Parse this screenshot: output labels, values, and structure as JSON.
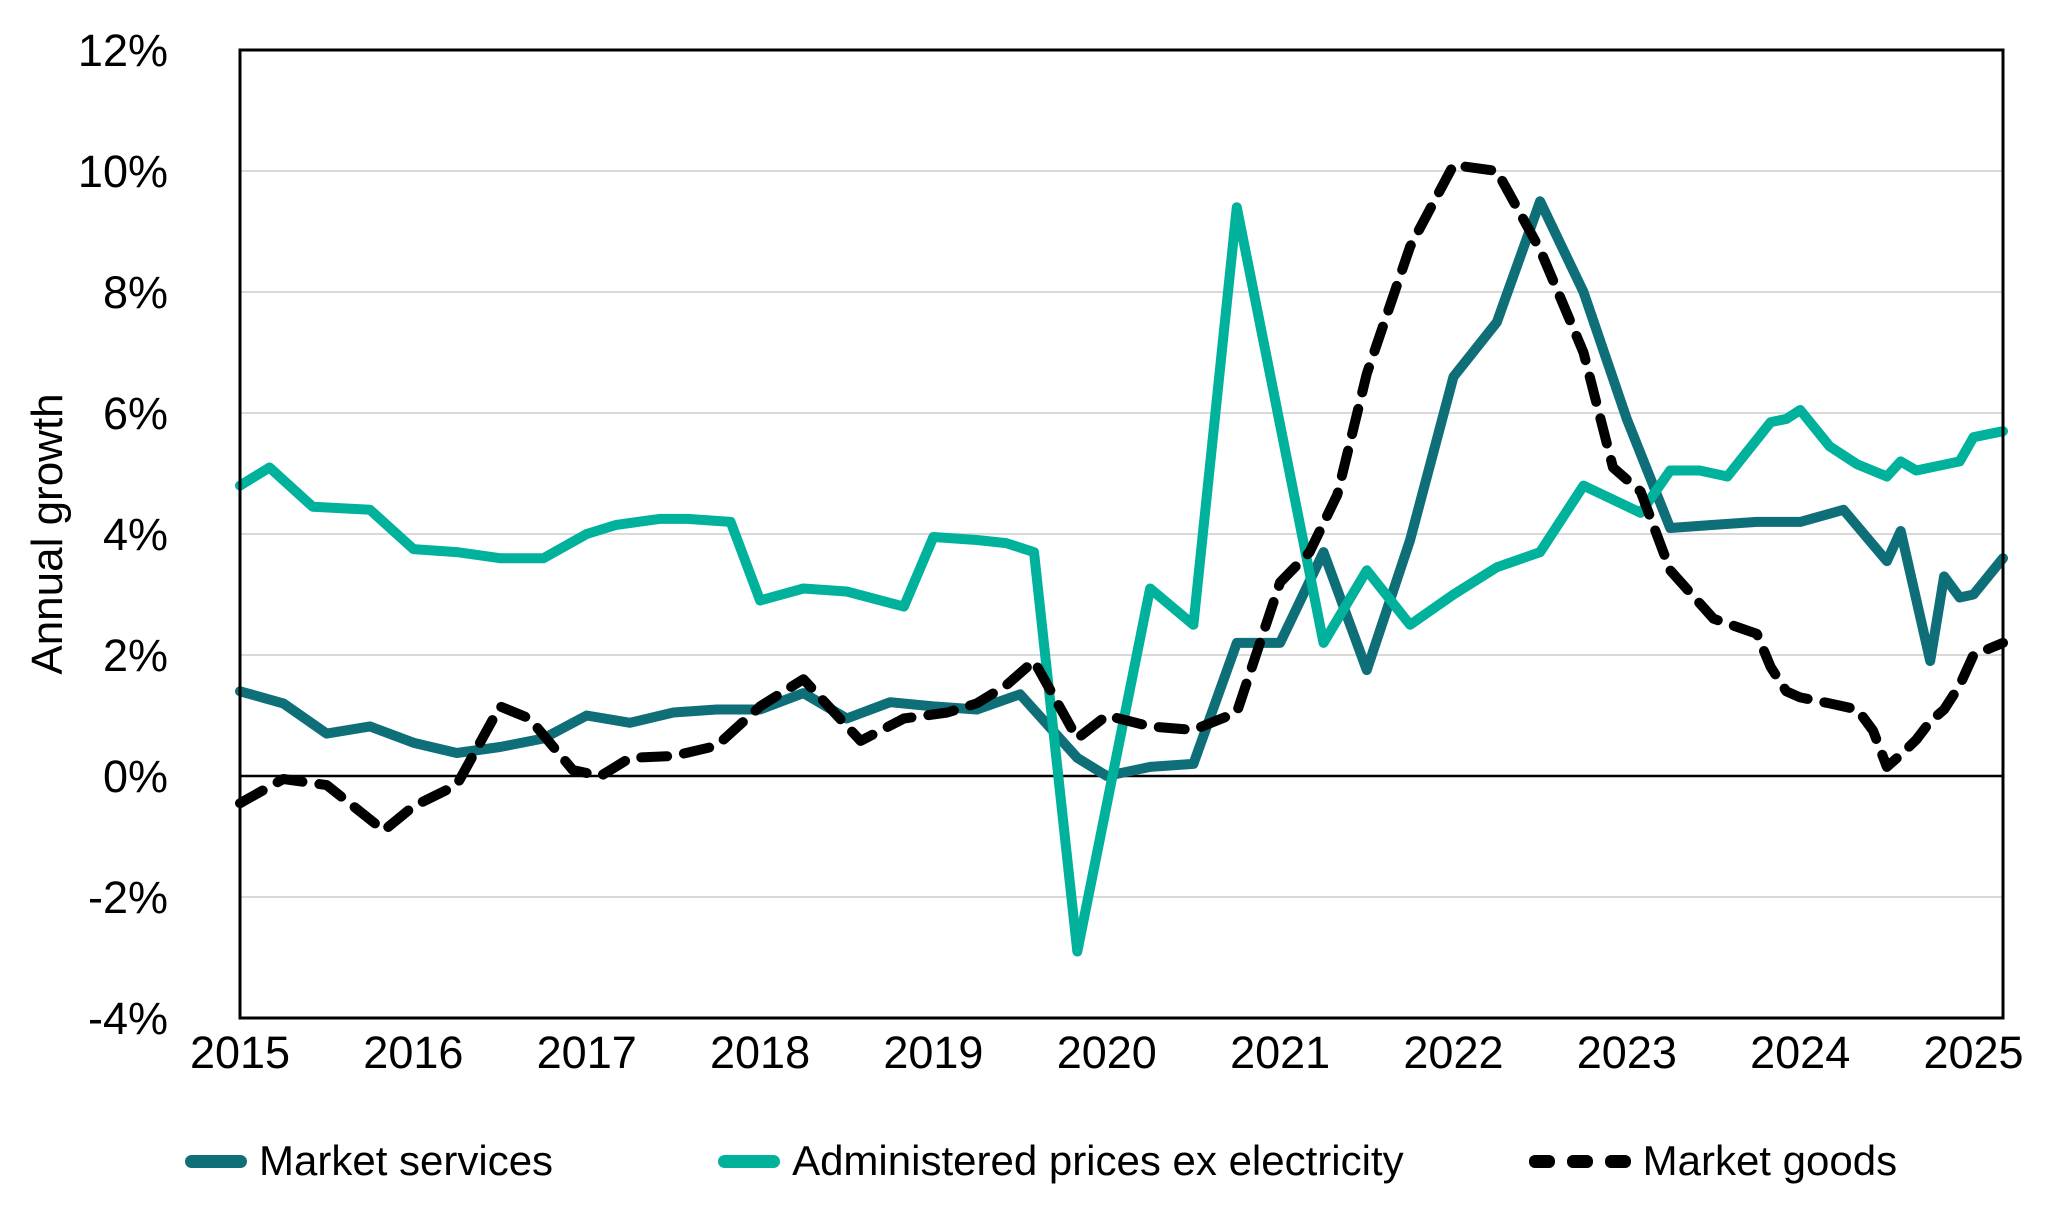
{
  "chart_data": {
    "type": "line",
    "title": "",
    "xlabel": "",
    "ylabel": "Annual growth",
    "ylim": [
      -4,
      12
    ],
    "ytick_step": 2,
    "ytick_suffix": "%",
    "xlim": [
      2015,
      2025.17
    ],
    "xticks": [
      2015,
      2016,
      2017,
      2018,
      2019,
      2020,
      2021,
      2022,
      2023,
      2024,
      2025
    ],
    "grid": "horizontal",
    "legend_position": "bottom",
    "background_color": "#ffffff",
    "gridline_color": "#d9d9d9",
    "axis_color": "#000000",
    "series": [
      {
        "name": "Market services",
        "color": "#0e6f78",
        "dash": "solid",
        "points": [
          [
            2015.0,
            1.4
          ],
          [
            2015.25,
            1.2
          ],
          [
            2015.5,
            0.7
          ],
          [
            2015.75,
            0.82
          ],
          [
            2016.0,
            0.55
          ],
          [
            2016.25,
            0.38
          ],
          [
            2016.5,
            0.48
          ],
          [
            2016.75,
            0.62
          ],
          [
            2017.0,
            1.0
          ],
          [
            2017.25,
            0.88
          ],
          [
            2017.5,
            1.05
          ],
          [
            2017.75,
            1.1
          ],
          [
            2018.0,
            1.1
          ],
          [
            2018.25,
            1.37
          ],
          [
            2018.5,
            0.95
          ],
          [
            2018.75,
            1.22
          ],
          [
            2019.0,
            1.15
          ],
          [
            2019.25,
            1.1
          ],
          [
            2019.5,
            1.35
          ],
          [
            2019.83,
            0.3
          ],
          [
            2020.0,
            0.0
          ],
          [
            2020.25,
            0.15
          ],
          [
            2020.5,
            0.2
          ],
          [
            2020.75,
            2.2
          ],
          [
            2021.0,
            2.2
          ],
          [
            2021.25,
            3.7
          ],
          [
            2021.5,
            1.75
          ],
          [
            2021.75,
            3.9
          ],
          [
            2022.0,
            6.6
          ],
          [
            2022.25,
            7.5
          ],
          [
            2022.5,
            9.5
          ],
          [
            2022.75,
            8.0
          ],
          [
            2023.0,
            5.9
          ],
          [
            2023.25,
            4.1
          ],
          [
            2023.5,
            4.15
          ],
          [
            2023.75,
            4.2
          ],
          [
            2024.0,
            4.2
          ],
          [
            2024.25,
            4.4
          ],
          [
            2024.5,
            3.55
          ],
          [
            2024.58,
            4.05
          ],
          [
            2024.75,
            1.9
          ],
          [
            2024.83,
            3.3
          ],
          [
            2024.92,
            2.95
          ],
          [
            2025.0,
            3.0
          ],
          [
            2025.17,
            3.6
          ]
        ]
      },
      {
        "name": "Administered prices ex electricity",
        "color": "#00b29b",
        "dash": "solid",
        "points": [
          [
            2015.0,
            4.8
          ],
          [
            2015.17,
            5.1
          ],
          [
            2015.42,
            4.45
          ],
          [
            2015.75,
            4.4
          ],
          [
            2016.0,
            3.75
          ],
          [
            2016.25,
            3.7
          ],
          [
            2016.5,
            3.6
          ],
          [
            2016.75,
            3.6
          ],
          [
            2017.0,
            4.0
          ],
          [
            2017.17,
            4.15
          ],
          [
            2017.42,
            4.25
          ],
          [
            2017.58,
            4.25
          ],
          [
            2017.83,
            4.2
          ],
          [
            2018.0,
            2.9
          ],
          [
            2018.25,
            3.1
          ],
          [
            2018.5,
            3.05
          ],
          [
            2018.83,
            2.8
          ],
          [
            2019.0,
            3.95
          ],
          [
            2019.25,
            3.9
          ],
          [
            2019.42,
            3.85
          ],
          [
            2019.58,
            3.7
          ],
          [
            2019.83,
            -2.9
          ],
          [
            2020.25,
            3.1
          ],
          [
            2020.5,
            2.5
          ],
          [
            2020.75,
            9.4
          ],
          [
            2021.25,
            2.2
          ],
          [
            2021.5,
            3.4
          ],
          [
            2021.75,
            2.5
          ],
          [
            2022.0,
            3.0
          ],
          [
            2022.25,
            3.45
          ],
          [
            2022.5,
            3.7
          ],
          [
            2022.75,
            4.8
          ],
          [
            2023.08,
            4.35
          ],
          [
            2023.25,
            5.05
          ],
          [
            2023.42,
            5.05
          ],
          [
            2023.58,
            4.95
          ],
          [
            2023.83,
            5.85
          ],
          [
            2023.92,
            5.9
          ],
          [
            2024.0,
            6.05
          ],
          [
            2024.17,
            5.45
          ],
          [
            2024.33,
            5.15
          ],
          [
            2024.5,
            4.95
          ],
          [
            2024.58,
            5.2
          ],
          [
            2024.67,
            5.05
          ],
          [
            2024.92,
            5.2
          ],
          [
            2025.0,
            5.6
          ],
          [
            2025.17,
            5.7
          ]
        ]
      },
      {
        "name": "Market goods",
        "color": "#000000",
        "dash": "dashed",
        "points": [
          [
            2015.0,
            -0.45
          ],
          [
            2015.25,
            -0.05
          ],
          [
            2015.5,
            -0.15
          ],
          [
            2015.83,
            -0.9
          ],
          [
            2016.0,
            -0.5
          ],
          [
            2016.25,
            -0.15
          ],
          [
            2016.5,
            1.15
          ],
          [
            2016.67,
            0.95
          ],
          [
            2016.92,
            0.1
          ],
          [
            2017.08,
            0.0
          ],
          [
            2017.25,
            0.3
          ],
          [
            2017.5,
            0.33
          ],
          [
            2017.75,
            0.5
          ],
          [
            2018.0,
            1.15
          ],
          [
            2018.25,
            1.6
          ],
          [
            2018.58,
            0.58
          ],
          [
            2018.83,
            0.95
          ],
          [
            2019.08,
            1.05
          ],
          [
            2019.25,
            1.2
          ],
          [
            2019.42,
            1.5
          ],
          [
            2019.58,
            1.9
          ],
          [
            2019.83,
            0.62
          ],
          [
            2020.0,
            1.0
          ],
          [
            2020.25,
            0.82
          ],
          [
            2020.5,
            0.76
          ],
          [
            2020.75,
            1.05
          ],
          [
            2021.0,
            3.2
          ],
          [
            2021.17,
            3.7
          ],
          [
            2021.33,
            4.65
          ],
          [
            2021.5,
            6.65
          ],
          [
            2021.75,
            8.75
          ],
          [
            2022.0,
            10.1
          ],
          [
            2022.25,
            10.0
          ],
          [
            2022.5,
            8.7
          ],
          [
            2022.75,
            7.0
          ],
          [
            2022.92,
            5.1
          ],
          [
            2023.08,
            4.7
          ],
          [
            2023.25,
            3.4
          ],
          [
            2023.5,
            2.6
          ],
          [
            2023.75,
            2.35
          ],
          [
            2023.83,
            1.8
          ],
          [
            2023.92,
            1.4
          ],
          [
            2024.0,
            1.3
          ],
          [
            2024.17,
            1.2
          ],
          [
            2024.33,
            1.1
          ],
          [
            2024.42,
            0.75
          ],
          [
            2024.5,
            0.15
          ],
          [
            2024.58,
            0.35
          ],
          [
            2024.67,
            0.6
          ],
          [
            2024.75,
            0.9
          ],
          [
            2024.83,
            1.1
          ],
          [
            2024.92,
            1.5
          ],
          [
            2025.0,
            2.0
          ],
          [
            2025.17,
            2.2
          ]
        ]
      }
    ]
  }
}
